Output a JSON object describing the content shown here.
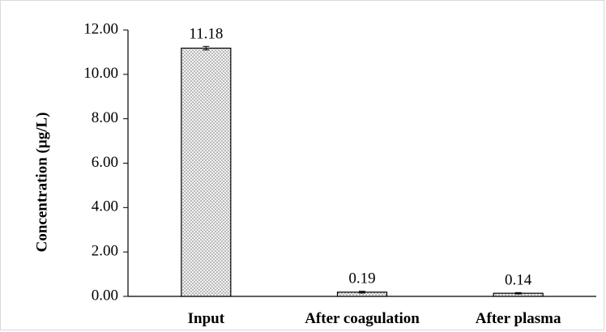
{
  "chart_data": {
    "type": "bar",
    "title": "",
    "xlabel": "",
    "ylabel": "Concentration  (μg/L)",
    "categories": [
      "Input",
      "After coagulation",
      "After plasma"
    ],
    "values": [
      11.18,
      0.19,
      0.14
    ],
    "data_labels": [
      "11.18",
      "0.19",
      "0.14"
    ],
    "error_bars": [
      0.08,
      0.04,
      0.03
    ],
    "ylim": [
      0,
      12
    ],
    "yticks": [
      0,
      2,
      4,
      6,
      8,
      10,
      12
    ],
    "ytick_labels": [
      "0.00",
      "2.00",
      "4.00",
      "6.00",
      "8.00",
      "10.00",
      "12.00"
    ],
    "grid": false,
    "legend": "none",
    "bar_fill": "dotted-gray",
    "colors": {
      "bar_background": "#f2f2f2",
      "bar_dots": "#6f6f6f",
      "bar_outline": "#000000",
      "axis": "#000000",
      "frame": "#d9d9d9"
    }
  }
}
